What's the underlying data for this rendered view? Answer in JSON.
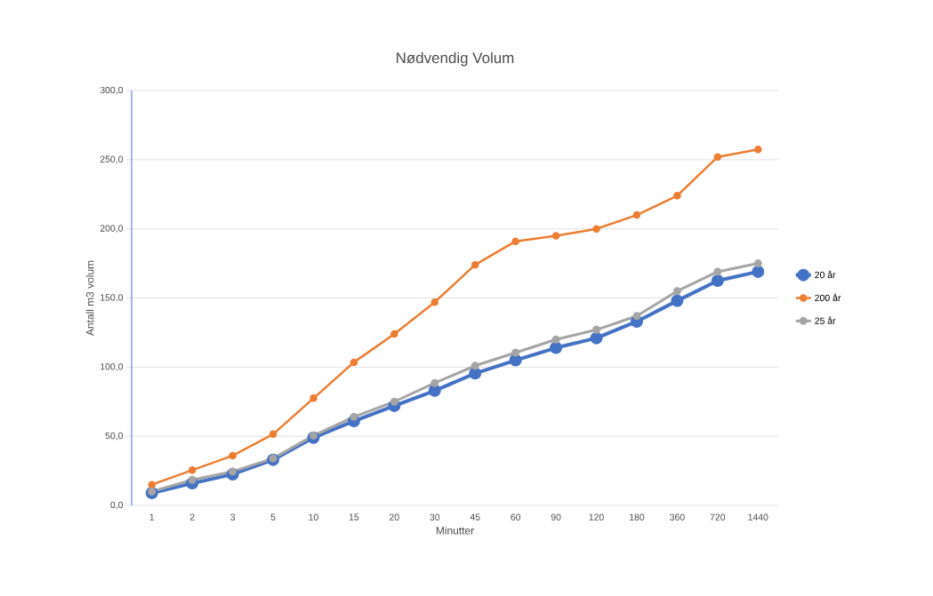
{
  "chart_data": {
    "type": "line",
    "title": "Nødvendig Volum",
    "xlabel": "Minutter",
    "ylabel": "Antall m3 volum",
    "categories": [
      "1",
      "2",
      "3",
      "5",
      "10",
      "15",
      "20",
      "30",
      "45",
      "60",
      "90",
      "120",
      "180",
      "360",
      "720",
      "1440"
    ],
    "series": [
      {
        "name": "20 år",
        "color": "#4472c4",
        "values": [
          9,
          16,
          22.5,
          33,
          49,
          61,
          72,
          83,
          95.5,
          105,
          114,
          121,
          133,
          148,
          162.5,
          169
        ]
      },
      {
        "name": "200 år",
        "color": "#ed7d31",
        "values": [
          15,
          25.5,
          36,
          51.5,
          77.5,
          103.5,
          124,
          147,
          174,
          191,
          195,
          200,
          210,
          224,
          252,
          257.5
        ]
      },
      {
        "name": "25 år",
        "color": "#a5a5a5",
        "values": [
          10,
          18.5,
          24.5,
          34,
          50.5,
          64,
          75,
          88.5,
          101,
          110.5,
          120,
          127,
          137,
          155,
          169,
          175
        ]
      }
    ],
    "ylim": [
      0,
      300
    ],
    "yticks": [
      {
        "value": 0,
        "label": "0,0"
      },
      {
        "value": 50,
        "label": "50,0"
      },
      {
        "value": 100,
        "label": "100,0"
      },
      {
        "value": 150,
        "label": "150,0"
      },
      {
        "value": 200,
        "label": "200,0"
      },
      {
        "value": 250,
        "label": "250,0"
      },
      {
        "value": 300,
        "label": "300,0"
      }
    ],
    "grid": "y",
    "legend": "right",
    "marker": "circle",
    "line_style": "solid"
  }
}
